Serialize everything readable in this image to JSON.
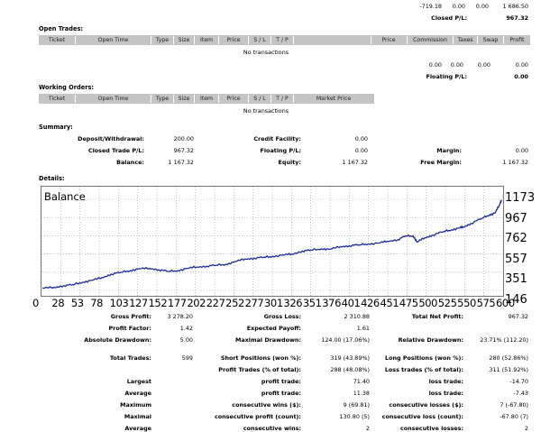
{
  "top": {
    "r1": [
      "-719.18",
      "0.00",
      "0.00",
      "1 686.50"
    ],
    "closed_pl_label": "Closed P/L:",
    "closed_pl_value": "967.32"
  },
  "open_trades": {
    "title": "Open Trades:",
    "headers": [
      "Ticket",
      "Open Time",
      "Type",
      "Size",
      "Item",
      "Price",
      "S / L",
      "T / P",
      "Price",
      "Commission",
      "Taxes",
      "Swap",
      "Profit"
    ],
    "empty": "No transactions",
    "totals": [
      "0.00",
      "0.00",
      "0.00",
      "0.00"
    ],
    "floating_label": "Floating P/L:",
    "floating_value": "0.00"
  },
  "working_orders": {
    "title": "Working Orders:",
    "headers": [
      "Ticket",
      "Open Time",
      "Type",
      "Size",
      "Item",
      "Price",
      "S / L",
      "T / P",
      "Market Price"
    ],
    "empty": "No transactions"
  },
  "summary": {
    "title": "Summary:",
    "rows": [
      {
        "l1": "Deposit/Withdrawal:",
        "v1": "200.00",
        "l2": "Credit Facility:",
        "v2": "0.00",
        "l3": "",
        "v3": ""
      },
      {
        "l1": "Closed Trade P/L:",
        "v1": "967.32",
        "l2": "Floating P/L:",
        "v2": "0.00",
        "l3": "Margin:",
        "v3": "0.00"
      },
      {
        "l1": "Balance:",
        "v1": "1 167.32",
        "l2": "Equity:",
        "v2": "1 167.32",
        "l3": "Free Margin:",
        "v3": "1 167.32"
      }
    ]
  },
  "details": {
    "title": "Details:"
  },
  "chart_data": {
    "type": "line",
    "title": "Balance",
    "series_color": "#1c2a9a",
    "y_ticks": [
      "1173",
      "967",
      "762",
      "557",
      "351",
      "146"
    ],
    "y_tick_values": [
      1173,
      967,
      762,
      557,
      351,
      146
    ],
    "x_ticks": [
      "0",
      "28",
      "53",
      "78",
      "103",
      "127",
      "152",
      "177",
      "202",
      "227",
      "252",
      "277",
      "301",
      "326",
      "351",
      "376",
      "401",
      "426",
      "451",
      "475",
      "500",
      "525",
      "550",
      "575",
      "600"
    ],
    "ylim": [
      146,
      1173
    ],
    "xlim": [
      0,
      600
    ],
    "grid": true,
    "points": [
      [
        0,
        170
      ],
      [
        15,
        180
      ],
      [
        28,
        200
      ],
      [
        40,
        210
      ],
      [
        53,
        240
      ],
      [
        65,
        260
      ],
      [
        78,
        290
      ],
      [
        90,
        330
      ],
      [
        103,
        350
      ],
      [
        115,
        370
      ],
      [
        127,
        390
      ],
      [
        140,
        395
      ],
      [
        152,
        380
      ],
      [
        165,
        360
      ],
      [
        177,
        370
      ],
      [
        190,
        395
      ],
      [
        202,
        410
      ],
      [
        215,
        420
      ],
      [
        227,
        430
      ],
      [
        240,
        440
      ],
      [
        252,
        470
      ],
      [
        265,
        500
      ],
      [
        277,
        510
      ],
      [
        290,
        520
      ],
      [
        301,
        530
      ],
      [
        315,
        545
      ],
      [
        326,
        555
      ],
      [
        340,
        590
      ],
      [
        351,
        600
      ],
      [
        365,
        615
      ],
      [
        376,
        610
      ],
      [
        390,
        640
      ],
      [
        401,
        650
      ],
      [
        415,
        660
      ],
      [
        426,
        670
      ],
      [
        440,
        680
      ],
      [
        451,
        700
      ],
      [
        465,
        720
      ],
      [
        475,
        760
      ],
      [
        485,
        760
      ],
      [
        490,
        690
      ],
      [
        500,
        740
      ],
      [
        510,
        770
      ],
      [
        525,
        810
      ],
      [
        535,
        830
      ],
      [
        545,
        850
      ],
      [
        550,
        860
      ],
      [
        560,
        900
      ],
      [
        575,
        960
      ],
      [
        585,
        1000
      ],
      [
        592,
        1020
      ],
      [
        597,
        1100
      ],
      [
        600,
        1167
      ]
    ]
  },
  "stats": {
    "rows": [
      {
        "a": "Gross Profit:",
        "av": "3 278.20",
        "b": "Gross Loss:",
        "bv": "2 310.88",
        "c": "Total Net Profit:",
        "cv": "967.32"
      },
      {
        "a": "Profit Factor:",
        "av": "1.42",
        "b": "Expected Payoff:",
        "bv": "1.61",
        "c": "",
        "cv": ""
      },
      {
        "a": "Absolute Drawdown:",
        "av": "5.00",
        "b": "Maximal Drawdown:",
        "bv": "124.00 (17.06%)",
        "c": "Relative Drawdown:",
        "cv": "23.71% (112.20)"
      },
      {
        "a": "",
        "av": "",
        "b": "",
        "bv": "",
        "c": "",
        "cv": ""
      },
      {
        "a": "Total Trades:",
        "av": "599",
        "b": "Short Positions (won %):",
        "bv": "319 (43.89%)",
        "c": "Long Positions (won %):",
        "cv": "280 (52.86%)"
      },
      {
        "a": "",
        "av": "",
        "b": "Profit Trades (% of total):",
        "bv": "288 (48.08%)",
        "c": "Loss trades (% of total):",
        "cv": "311 (51.92%)"
      },
      {
        "a": "Largest",
        "av": "",
        "b": "profit trade:",
        "bv": "71.40",
        "c": "loss trade:",
        "cv": "-14.70"
      },
      {
        "a": "Average",
        "av": "",
        "b": "profit trade:",
        "bv": "11.38",
        "c": "loss trade:",
        "cv": "-7.43"
      },
      {
        "a": "Maximum",
        "av": "",
        "b": "consecutive wins ($):",
        "bv": "9 (69.81)",
        "c": "consecutive losses ($):",
        "cv": "7 (-67.80)"
      },
      {
        "a": "Maximal",
        "av": "",
        "b": "consecutive profit (count):",
        "bv": "130.80 (5)",
        "c": "consecutive loss (count):",
        "cv": "-67.80 (7)"
      },
      {
        "a": "Average",
        "av": "",
        "b": "consecutive wins:",
        "bv": "2",
        "c": "consecutive losses:",
        "cv": "2"
      }
    ]
  }
}
